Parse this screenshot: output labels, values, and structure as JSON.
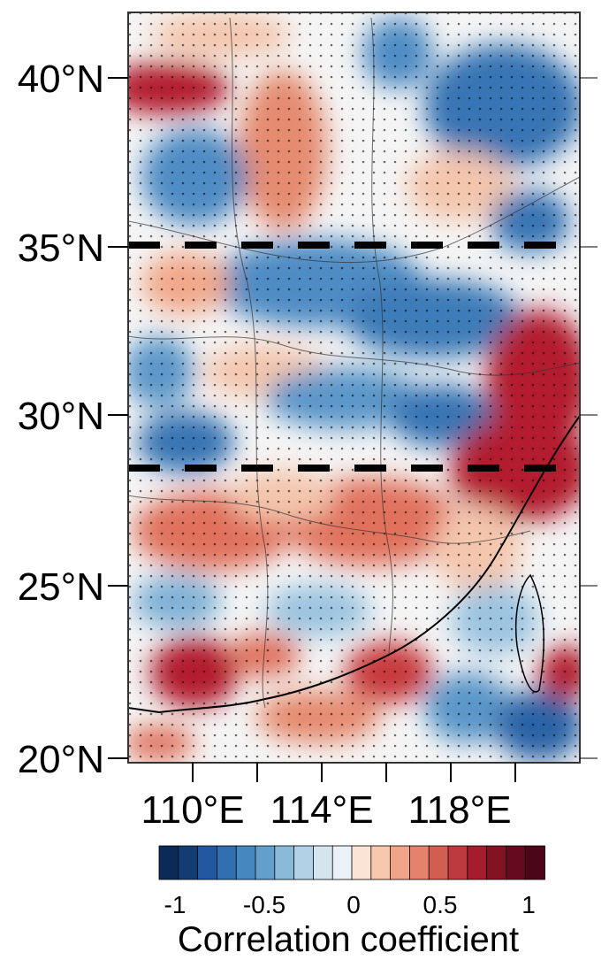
{
  "map": {
    "lat_labels": [
      "40°N",
      "35°N",
      "30°N",
      "25°N",
      "20°N"
    ],
    "lon_labels": [
      "110°E",
      "114°E",
      "118°E"
    ],
    "reference_lines": [
      "35°N",
      "28.5°N"
    ]
  },
  "colorbar": {
    "tick_labels": [
      "-1",
      "-0.5",
      "0",
      "0.5",
      "1"
    ],
    "title": "Correlation coefficient",
    "colors": [
      "#0b2a55",
      "#133d72",
      "#2358a0",
      "#316fb1",
      "#4687c0",
      "#629fcd",
      "#8bbad9",
      "#b3d1e6",
      "#d4e5f0",
      "#eaf2f8",
      "#fbe4d6",
      "#f7c8ad",
      "#f1a588",
      "#e5826b",
      "#d25e52",
      "#bd3a3f",
      "#a41c2d",
      "#841225",
      "#650a1f",
      "#4b0617"
    ]
  },
  "colors": {
    "strong_negative": "#1f5598",
    "negative": "#7fb1d6",
    "neutral": "#f7f7f7",
    "positive": "#f1a88a",
    "strong_positive": "#b21e2e"
  }
}
